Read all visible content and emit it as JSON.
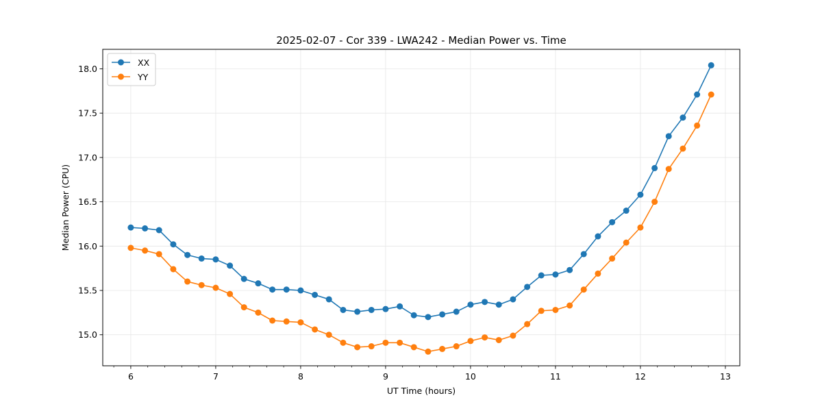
{
  "chart_data": {
    "type": "line",
    "title": "2025-02-07 - Cor 339 - LWA242 - Median Power vs. Time",
    "xlabel": "UT Time (hours)",
    "ylabel": "Median Power (CPU)",
    "xlim": [
      5.67,
      13.17
    ],
    "ylim": [
      14.65,
      18.22
    ],
    "xticks": [
      6,
      7,
      8,
      9,
      10,
      11,
      12,
      13
    ],
    "xtick_labels": [
      "6",
      "7",
      "8",
      "9",
      "10",
      "11",
      "12",
      "13"
    ],
    "xminor_step": 0.2,
    "yticks": [
      15.0,
      15.5,
      16.0,
      16.5,
      17.0,
      17.5,
      18.0
    ],
    "ytick_labels": [
      "15.0",
      "15.5",
      "16.0",
      "16.5",
      "17.0",
      "17.5",
      "18.0"
    ],
    "grid": true,
    "legend": "top-left",
    "x": [
      6.0,
      6.167,
      6.333,
      6.5,
      6.667,
      6.833,
      7.0,
      7.167,
      7.333,
      7.5,
      7.667,
      7.833,
      8.0,
      8.167,
      8.333,
      8.5,
      8.667,
      8.833,
      9.0,
      9.167,
      9.333,
      9.5,
      9.667,
      9.833,
      10.0,
      10.167,
      10.333,
      10.5,
      10.667,
      10.833,
      11.0,
      11.167,
      11.333,
      11.5,
      11.667,
      11.833,
      12.0,
      12.167,
      12.333,
      12.5,
      12.667,
      12.833
    ],
    "series": [
      {
        "name": "XX",
        "color": "#1f77b4",
        "values": [
          16.21,
          16.2,
          16.18,
          16.02,
          15.9,
          15.86,
          15.85,
          15.78,
          15.63,
          15.58,
          15.51,
          15.51,
          15.5,
          15.45,
          15.4,
          15.28,
          15.26,
          15.28,
          15.29,
          15.32,
          15.22,
          15.2,
          15.23,
          15.26,
          15.34,
          15.37,
          15.34,
          15.4,
          15.54,
          15.67,
          15.68,
          15.73,
          15.91,
          16.11,
          16.27,
          16.4,
          16.58,
          16.88,
          17.24,
          17.45,
          17.71,
          18.04
        ]
      },
      {
        "name": "YY",
        "color": "#ff7f0e",
        "values": [
          15.98,
          15.95,
          15.91,
          15.74,
          15.6,
          15.56,
          15.53,
          15.46,
          15.31,
          15.25,
          15.16,
          15.15,
          15.14,
          15.06,
          15.0,
          14.91,
          14.86,
          14.87,
          14.91,
          14.91,
          14.86,
          14.81,
          14.84,
          14.87,
          14.93,
          14.97,
          14.94,
          14.99,
          15.12,
          15.27,
          15.28,
          15.33,
          15.51,
          15.69,
          15.86,
          16.04,
          16.21,
          16.5,
          16.87,
          17.1,
          17.36,
          17.71
        ]
      }
    ]
  }
}
